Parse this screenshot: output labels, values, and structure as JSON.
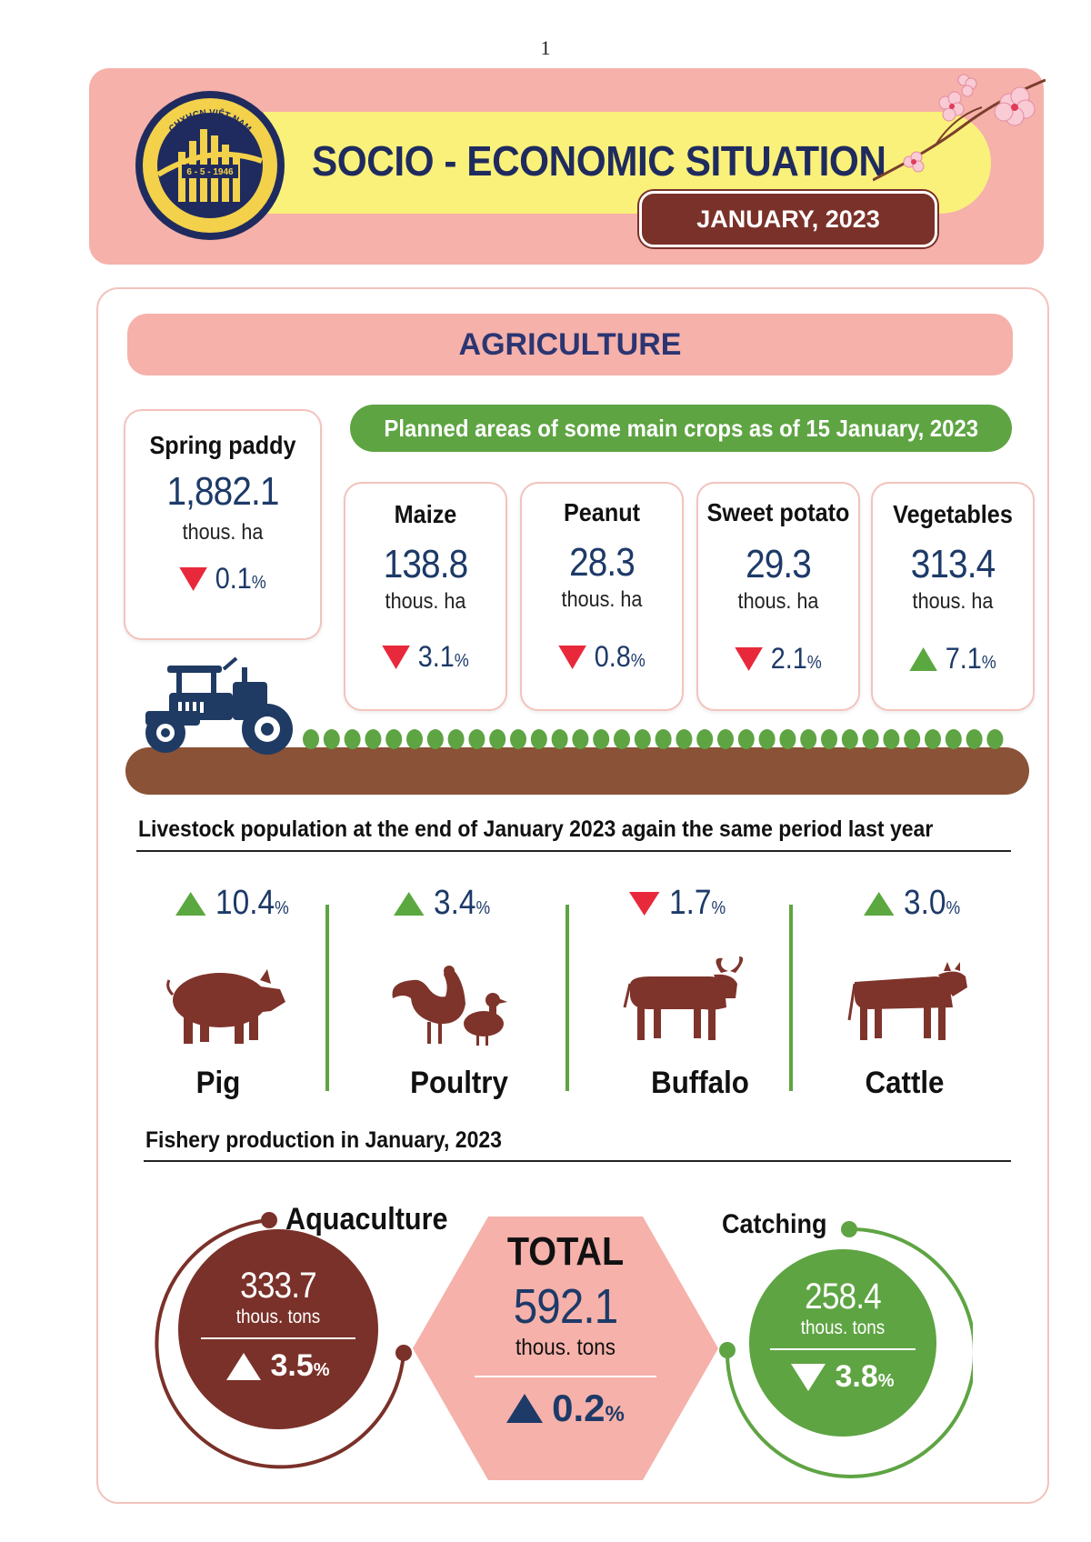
{
  "page_number": "1",
  "header": {
    "title": "SOCIO - ECONOMIC SITUATION",
    "date": "JANUARY, 2023",
    "logo_top_text": "CHXHCN VIỆT NAM",
    "logo_mid_text": "6 - 5 - 1946",
    "logo_bottom_text": "TỔNG CỤC THỐNG KÊ"
  },
  "section_title": "AGRICULTURE",
  "spring_paddy": {
    "label": "Spring paddy",
    "value": "1,882.1",
    "unit": "thous. ha",
    "change": "0.1",
    "pct": "%",
    "direction": "down"
  },
  "crops_banner": "Planned areas of some main crops as of 15 January, 2023",
  "crops": [
    {
      "label": "Maize",
      "value": "138.8",
      "unit": "thous. ha",
      "change": "3.1",
      "pct": "%",
      "direction": "down"
    },
    {
      "label": "Peanut",
      "value": "28.3",
      "unit": "thous. ha",
      "change": "0.8",
      "pct": "%",
      "direction": "down"
    },
    {
      "label": "Sweet potato",
      "value": "29.3",
      "unit": "thous. ha",
      "change": "2.1",
      "pct": "%",
      "direction": "down"
    },
    {
      "label": "Vegetables",
      "value": "313.4",
      "unit": "thous. ha",
      "change": "7.1",
      "pct": "%",
      "direction": "up"
    }
  ],
  "livestock": {
    "heading": "Livestock population at the end of January 2023 again the same period last year",
    "items": [
      {
        "name": "Pig",
        "change": "10.4",
        "pct": "%",
        "direction": "up"
      },
      {
        "name": "Poultry",
        "change": "3.4",
        "pct": "%",
        "direction": "up"
      },
      {
        "name": "Buffalo",
        "change": "1.7",
        "pct": "%",
        "direction": "down"
      },
      {
        "name": "Cattle",
        "change": "3.0",
        "pct": "%",
        "direction": "up"
      }
    ]
  },
  "fishery": {
    "heading": "Fishery production in January, 2023",
    "aquaculture": {
      "label": "Aquaculture",
      "value": "333.7",
      "unit": "thous. tons",
      "change": "3.5",
      "pct": "%",
      "direction": "up"
    },
    "total": {
      "label": "TOTAL",
      "value": "592.1",
      "unit": "thous. tons",
      "change": "0.2",
      "pct": "%",
      "direction": "up"
    },
    "catching": {
      "label": "Catching",
      "value": "258.4",
      "unit": "thous. tons",
      "change": "3.8",
      "pct": "%",
      "direction": "down"
    }
  },
  "colors": {
    "pink": "#f5b1aa",
    "yellow": "#faf17a",
    "brown": "#7a3129",
    "green": "#5ea443",
    "navy": "#1d3a68",
    "red": "#e8293b",
    "soil": "#8a5236"
  }
}
